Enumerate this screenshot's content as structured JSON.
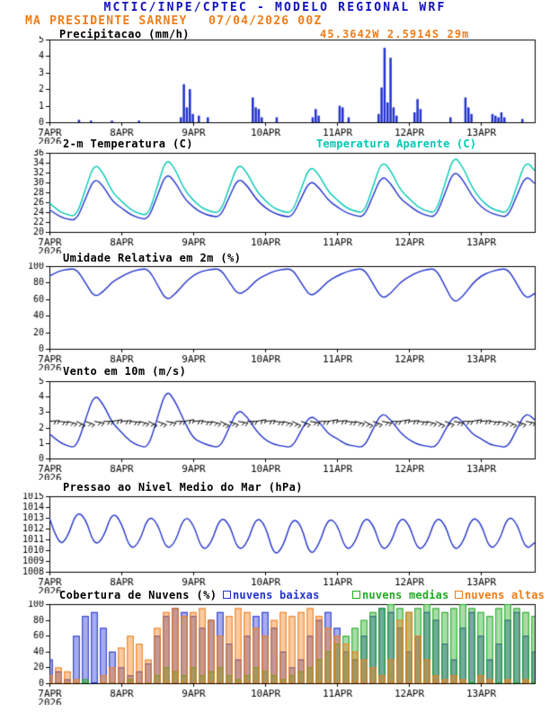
{
  "header": {
    "line1": "MCTIC/INPE/CPTEC - MODELO REGIONAL WRF",
    "station": "MA PRESIDENTE SARNEY",
    "run": "07/04/2026 00Z",
    "location": "45.3642W 2.5914S 29m"
  },
  "colors": {
    "blue": "#2233cc",
    "cyan": "#00c8b4",
    "green": "#22aa22",
    "orange": "#ee7d1a",
    "header_blue": "#1111bb",
    "black": "#000000"
  },
  "x_axis": {
    "hours_span": 162,
    "tick_hours": [
      0,
      24,
      48,
      72,
      96,
      120,
      144
    ],
    "tick_labels": [
      "7APR",
      "8APR",
      "9APR",
      "10APR",
      "11APR",
      "12APR",
      "13APR"
    ],
    "year_label": "2026"
  },
  "chart_data": [
    {
      "id": "precip",
      "type": "bar",
      "title": "Precipitacao (mm/h)",
      "ylim": [
        0,
        5
      ],
      "yticks": [
        0,
        1,
        2,
        3,
        4,
        5
      ],
      "bar_color": "blue",
      "bars": [
        [
          10,
          0.15
        ],
        [
          14,
          0.1
        ],
        [
          21,
          0.1
        ],
        [
          30,
          0.1
        ],
        [
          44,
          0.3
        ],
        [
          45,
          2.3
        ],
        [
          46,
          0.9
        ],
        [
          47,
          2.0
        ],
        [
          48,
          0.5
        ],
        [
          50,
          0.4
        ],
        [
          53,
          0.3
        ],
        [
          68,
          1.5
        ],
        [
          69,
          0.9
        ],
        [
          70,
          0.8
        ],
        [
          71,
          0.3
        ],
        [
          76,
          0.3
        ],
        [
          88,
          0.3
        ],
        [
          89,
          0.8
        ],
        [
          90,
          0.4
        ],
        [
          97,
          1.0
        ],
        [
          98,
          0.9
        ],
        [
          100,
          0.3
        ],
        [
          110,
          0.5
        ],
        [
          111,
          2.1
        ],
        [
          112,
          4.5
        ],
        [
          113,
          1.2
        ],
        [
          114,
          3.9
        ],
        [
          115,
          0.9
        ],
        [
          116,
          0.4
        ],
        [
          122,
          0.6
        ],
        [
          123,
          1.4
        ],
        [
          124,
          0.8
        ],
        [
          134,
          0.3
        ],
        [
          139,
          1.5
        ],
        [
          140,
          0.9
        ],
        [
          141,
          0.5
        ],
        [
          148,
          0.5
        ],
        [
          149,
          0.4
        ],
        [
          150,
          0.3
        ],
        [
          151,
          0.6
        ],
        [
          152,
          0.3
        ],
        [
          158,
          0.2
        ]
      ]
    },
    {
      "id": "temp",
      "type": "line",
      "title": "2-m Temperatura (C)",
      "legend": "Temperatura Aparente (C)",
      "ylim": [
        20,
        36
      ],
      "yticks": [
        20,
        22,
        24,
        26,
        28,
        30,
        32,
        34,
        36
      ],
      "step_hours": 3,
      "series": [
        {
          "name": "2-m Temperatura",
          "color": "blue",
          "values": [
            24.5,
            23.2,
            22.6,
            22.3,
            26.7,
            31.0,
            29.3,
            26.2,
            24.9,
            23.5,
            22.8,
            22.5,
            27.3,
            32.0,
            30.1,
            26.8,
            25.0,
            23.8,
            23.2,
            23.0,
            27.0,
            31.0,
            29.4,
            26.6,
            24.9,
            23.8,
            23.2,
            23.0,
            26.8,
            30.5,
            29.0,
            26.4,
            25.1,
            23.9,
            23.3,
            23.0,
            27.3,
            31.5,
            29.8,
            26.8,
            25.4,
            24.0,
            23.3,
            23.0,
            27.8,
            32.5,
            30.6,
            27.3,
            25.1,
            23.9,
            23.3,
            23.0,
            27.3,
            31.5,
            29.8
          ]
        },
        {
          "name": "Temperatura Aparente",
          "color": "cyan",
          "values": [
            25.9,
            24.2,
            23.5,
            23.1,
            28.6,
            34.0,
            31.9,
            28.0,
            26.3,
            24.5,
            23.7,
            23.3,
            29.2,
            35.0,
            32.7,
            28.6,
            26.4,
            24.8,
            24.1,
            23.8,
            28.9,
            34.0,
            32.0,
            28.4,
            26.3,
            24.8,
            24.1,
            23.8,
            28.7,
            33.5,
            31.6,
            28.2,
            26.5,
            24.9,
            24.2,
            23.8,
            29.2,
            34.5,
            32.4,
            28.6,
            26.8,
            25.0,
            24.2,
            23.8,
            29.7,
            35.5,
            33.2,
            29.1,
            26.5,
            24.9,
            24.2,
            23.8,
            29.2,
            34.5,
            32.4
          ]
        }
      ]
    },
    {
      "id": "rh",
      "type": "line",
      "title": "Umidade Relativa em 2m (%)",
      "ylim": [
        0,
        100
      ],
      "yticks": [
        0,
        20,
        40,
        60,
        80,
        100
      ],
      "step_hours": 3,
      "series": [
        {
          "name": "Umidade Relativa",
          "color": "blue",
          "values": [
            88,
            94,
            96,
            97,
            80,
            62,
            69,
            81,
            87,
            93,
            96,
            97,
            78,
            58,
            66,
            79,
            89,
            94,
            96,
            97,
            81,
            65,
            71,
            83,
            89,
            94,
            96,
            97,
            80,
            63,
            70,
            82,
            88,
            93,
            96,
            97,
            79,
            60,
            67,
            80,
            87,
            93,
            96,
            97,
            76,
            55,
            63,
            78,
            88,
            93,
            96,
            97,
            79,
            60,
            67
          ]
        }
      ]
    },
    {
      "id": "wind",
      "type": "line",
      "title": "Vento em 10m (m/s)",
      "ylim": [
        0,
        5
      ],
      "yticks": [
        0,
        1,
        2,
        3,
        4,
        5
      ],
      "step_hours": 3,
      "series": [
        {
          "name": "Vento 10m",
          "color": "blue",
          "values": [
            1.6,
            1.1,
            0.8,
            0.7,
            2.5,
            4.2,
            3.5,
            2.3,
            1.7,
            1.1,
            0.8,
            0.7,
            2.6,
            4.5,
            3.7,
            2.4,
            1.3,
            1.0,
            0.8,
            0.7,
            2.0,
            3.2,
            2.7,
            1.8,
            1.2,
            0.9,
            0.8,
            0.7,
            1.8,
            2.8,
            2.4,
            1.6,
            1.3,
            0.9,
            0.8,
            0.7,
            1.9,
            3.0,
            2.5,
            1.7,
            1.2,
            0.9,
            0.8,
            0.7,
            1.8,
            2.8,
            2.4,
            1.6,
            1.3,
            0.9,
            0.8,
            0.7,
            1.9,
            3.0,
            2.5
          ]
        }
      ],
      "barbs": {
        "y": 2.4,
        "directions_deg": [
          85,
          95,
          105,
          115,
          110,
          100,
          90,
          80,
          85,
          95,
          105,
          115,
          110,
          100,
          90,
          80,
          85,
          95,
          105,
          115,
          110,
          100,
          90,
          80,
          85,
          95,
          105,
          115,
          110,
          100,
          90,
          80,
          85,
          95,
          105,
          115,
          110,
          100,
          90,
          80,
          85,
          95,
          105,
          115,
          110,
          100,
          90,
          80,
          85,
          95,
          105,
          115,
          110,
          100,
          90
        ]
      }
    },
    {
      "id": "pres",
      "type": "line",
      "title": "Pressao ao Nivel Medio do Mar (hPa)",
      "ylim": [
        1008,
        1015
      ],
      "yticks": [
        1008,
        1009,
        1010,
        1011,
        1012,
        1013,
        1014,
        1015
      ],
      "step_hours": 3,
      "series": [
        {
          "name": "Pressao nivel do mar",
          "color": "blue",
          "values": [
            1013.0,
            1010.4,
            1011.1,
            1013.6,
            1013.0,
            1010.4,
            1011.1,
            1013.6,
            1012.6,
            1010.0,
            1010.7,
            1013.2,
            1012.6,
            1010.0,
            1010.7,
            1013.2,
            1012.5,
            1009.9,
            1010.6,
            1013.1,
            1012.5,
            1009.9,
            1010.6,
            1013.1,
            1012.4,
            1009.4,
            1010.3,
            1013.0,
            1012.4,
            1009.4,
            1010.5,
            1013.0,
            1012.5,
            1009.9,
            1010.6,
            1013.1,
            1012.5,
            1009.9,
            1010.6,
            1013.1,
            1012.5,
            1009.9,
            1010.6,
            1013.1,
            1012.5,
            1009.9,
            1010.6,
            1013.1,
            1012.6,
            1010.0,
            1010.7,
            1013.2,
            1012.6,
            1010.0,
            1010.7
          ]
        }
      ]
    },
    {
      "id": "clouds",
      "type": "multibar",
      "title": "Cobertura de Nuvens (%)",
      "ylim": [
        0,
        100
      ],
      "yticks": [
        0,
        20,
        40,
        60,
        80,
        100
      ],
      "step_hours": 3,
      "series": [
        {
          "name": "nuvens baixas",
          "color": "blue",
          "values": [
            30,
            15,
            5,
            60,
            85,
            90,
            70,
            40,
            20,
            10,
            15,
            25,
            60,
            85,
            95,
            90,
            85,
            70,
            80,
            90,
            50,
            30,
            60,
            85,
            90,
            70,
            40,
            20,
            30,
            60,
            80,
            90,
            70,
            40,
            30,
            60,
            85,
            95,
            90,
            70,
            40,
            60,
            90,
            80,
            50,
            30,
            70,
            90,
            60,
            30,
            50,
            80,
            90,
            60,
            40
          ]
        },
        {
          "name": "nuvens medias",
          "color": "green",
          "values": [
            0,
            0,
            0,
            0,
            5,
            0,
            0,
            0,
            0,
            5,
            0,
            0,
            10,
            20,
            15,
            10,
            20,
            10,
            15,
            20,
            10,
            5,
            10,
            20,
            15,
            10,
            5,
            10,
            15,
            20,
            30,
            40,
            50,
            60,
            70,
            80,
            90,
            95,
            100,
            95,
            90,
            95,
            100,
            95,
            90,
            95,
            100,
            95,
            90,
            85,
            95,
            100,
            95,
            90,
            85
          ]
        },
        {
          "name": "nuvens altas",
          "color": "orange",
          "values": [
            10,
            20,
            15,
            5,
            0,
            0,
            10,
            20,
            45,
            60,
            50,
            30,
            70,
            90,
            95,
            85,
            90,
            95,
            80,
            60,
            85,
            95,
            90,
            70,
            60,
            80,
            90,
            85,
            90,
            95,
            85,
            70,
            60,
            50,
            40,
            30,
            20,
            10,
            30,
            80,
            90,
            60,
            30,
            10,
            5,
            10,
            5,
            0,
            10,
            5,
            0,
            5,
            0,
            5,
            0
          ]
        }
      ]
    }
  ]
}
